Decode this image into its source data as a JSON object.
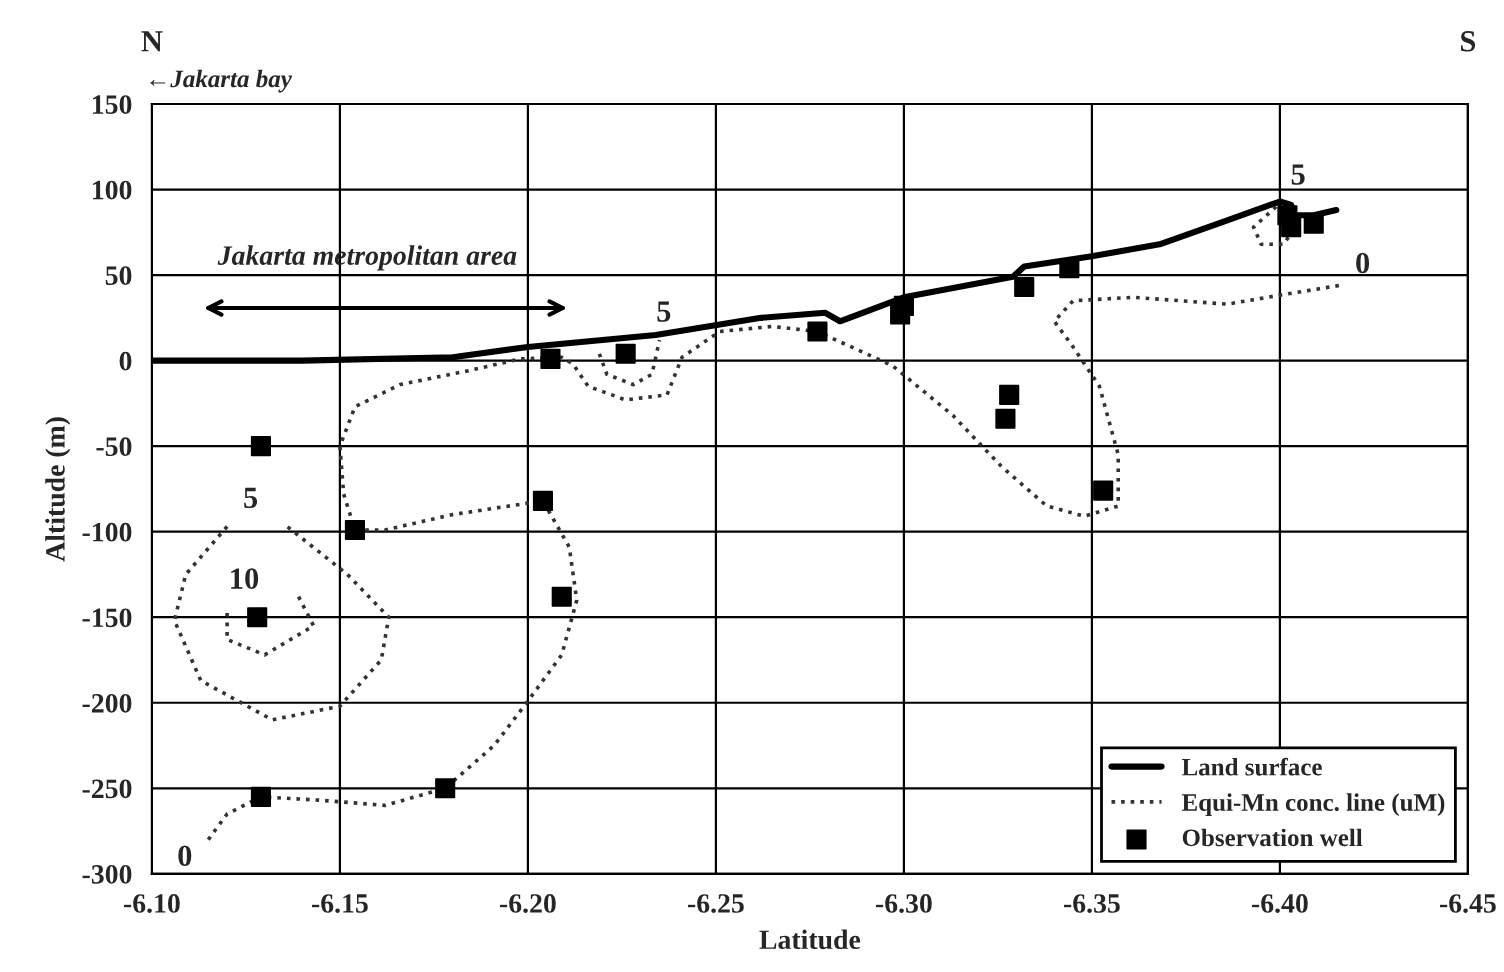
{
  "chart_data": {
    "type": "line",
    "xlabel": "Latitude",
    "ylabel": "Altitude (m)",
    "xlim": [
      -6.1,
      -6.45
    ],
    "xticks": [
      {
        "value": -6.1,
        "label": "-6.10"
      },
      -6.15,
      {
        "value": -6.2,
        "label": "-6.20"
      },
      -6.25,
      {
        "value": -6.3,
        "label": "-6.30"
      },
      -6.35,
      {
        "value": -6.4,
        "label": "-6.40"
      },
      -6.45
    ],
    "ylim": [
      -300,
      150
    ],
    "yticks": [
      -300,
      -250,
      -200,
      -150,
      -100,
      -50,
      0,
      50,
      100,
      150
    ],
    "grid": true,
    "legend": "bottom right",
    "series": [
      {
        "name": "Land surface",
        "color": "#000000",
        "line_style": "solid",
        "x": [
          -6.1,
          -6.14,
          -6.18,
          -6.2,
          -6.234,
          -6.262,
          -6.279,
          -6.283,
          -6.3,
          -6.329,
          -6.332,
          -6.35,
          -6.368,
          -6.386,
          -6.4,
          -6.403,
          -6.404,
          -6.409,
          -6.415
        ],
        "values": [
          0,
          0,
          2,
          8,
          15,
          25,
          28,
          23,
          37,
          49,
          55,
          61,
          68,
          82,
          93,
          91,
          85,
          85,
          88
        ]
      },
      {
        "name": "Equi-Mn conc. line (uM)",
        "color": "#333333",
        "line_style": "dotted",
        "x": [
          -6.115,
          -6.12,
          -6.129,
          -6.145,
          -6.162,
          -6.178,
          -6.191,
          -6.2,
          -6.209,
          -6.213,
          -6.211,
          -6.204,
          -6.18,
          -6.162,
          -6.154,
          -6.151,
          -6.15,
          -6.154,
          -6.166,
          -6.184,
          -6.198,
          -6.209,
          -6.212,
          -6.216,
          -6.226,
          -6.237,
          -6.241,
          -6.251,
          -6.265,
          -6.277,
          -6.297,
          -6.313,
          -6.326,
          -6.338,
          -6.348,
          -6.357,
          -6.357,
          -6.352,
          -6.345,
          -6.34,
          -6.345,
          -6.361,
          -6.386,
          -6.402,
          -6.416
        ],
        "values": [
          -280,
          -265,
          -255,
          -257,
          -260,
          -250,
          -225,
          -199,
          -172,
          -140,
          -109,
          -82,
          -90,
          -99,
          -99,
          -78,
          -50,
          -27,
          -14,
          -6,
          1,
          2,
          -2,
          -15,
          -23,
          -20,
          2,
          17,
          20,
          17,
          -3,
          -32,
          -62,
          -85,
          -91,
          -85,
          -55,
          -15,
          8,
          23,
          35,
          37,
          33,
          39,
          44
        ]
      },
      {
        "type": "line",
        "color": "#333333",
        "line_style": "dotted",
        "x": [
          -6.12,
          -6.109,
          -6.106,
          -6.113,
          -6.132,
          -6.15,
          -6.161,
          -6.163,
          -6.152,
          -6.136
        ],
        "values": [
          -97,
          -125,
          -152,
          -187,
          -210,
          -202,
          -175,
          -150,
          -125,
          -97
        ]
      },
      {
        "type": "line",
        "color": "#333333",
        "line_style": "dotted",
        "x": [
          -6.139,
          -6.143,
          -6.13,
          -6.12,
          -6.12
        ],
        "values": [
          -138,
          -155,
          -172,
          -163,
          -146
        ]
      },
      {
        "type": "line",
        "color": "#333333",
        "line_style": "dotted",
        "x": [
          -6.219,
          -6.221,
          -6.228,
          -6.233,
          -6.235
        ],
        "values": [
          4,
          -8,
          -14,
          -8,
          12
        ]
      },
      {
        "type": "line",
        "color": "#333333",
        "line_style": "dotted",
        "x": [
          -6.399,
          -6.393,
          -6.395,
          -6.401,
          -6.404
        ],
        "values": [
          90,
          78,
          68,
          68,
          78
        ]
      },
      {
        "type": "scatter",
        "name": "Observation well",
        "color": "#000000",
        "marker": "square",
        "x": [
          -6.129,
          -6.206,
          -6.226,
          -6.154,
          -6.204,
          -6.128,
          -6.209,
          -6.178,
          -6.129,
          -6.277,
          -6.299,
          -6.3,
          -6.332,
          -6.344,
          -6.328,
          -6.327,
          -6.353,
          -6.402,
          -6.403,
          -6.409
        ],
        "values": [
          -50,
          1,
          4,
          -99,
          -82,
          -150,
          -138,
          -250,
          -255,
          17,
          27,
          32,
          43,
          54,
          -20,
          -34,
          -76,
          85,
          78,
          80
        ]
      }
    ],
    "annotations": [
      "N",
      "S",
      "←Jakarta bay",
      "Jakarta metropolitan area",
      "0",
      "5",
      "10",
      "5",
      "5",
      "0"
    ]
  }
}
